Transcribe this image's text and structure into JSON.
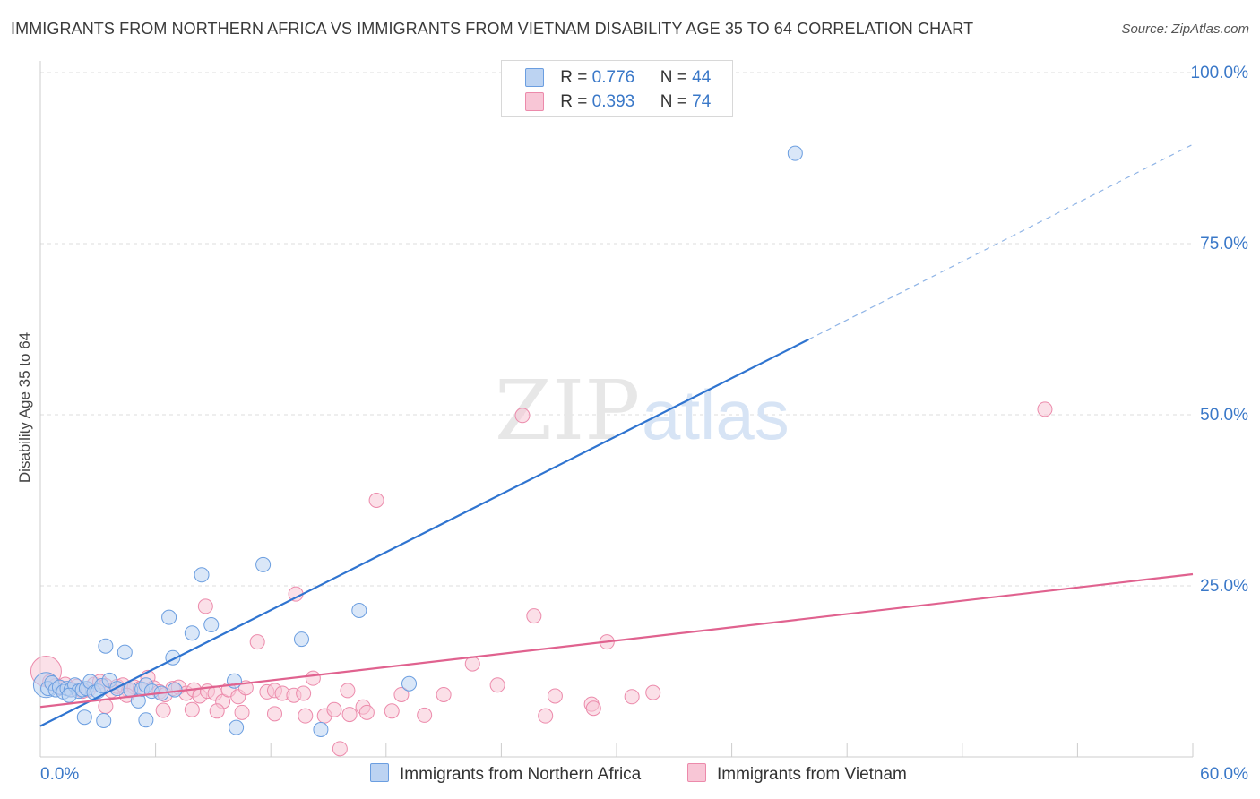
{
  "title": "IMMIGRANTS FROM NORTHERN AFRICA VS IMMIGRANTS FROM VIETNAM DISABILITY AGE 35 TO 64 CORRELATION CHART",
  "source": "Source: ZipAtlas.com",
  "watermark": {
    "zip": "ZIP",
    "atlas": "atlas"
  },
  "legend": {
    "rows": [
      {
        "r_label": "R =",
        "r_value": "0.776",
        "n_label": "N =",
        "n_value": "44"
      },
      {
        "r_label": "R =",
        "r_value": "0.393",
        "n_label": "N =",
        "n_value": "74"
      }
    ]
  },
  "bottom_legend": {
    "series1": "Immigrants from Northern Africa",
    "series2": "Immigrants from Vietnam"
  },
  "colors": {
    "blue_fill": "#bcd3f2",
    "blue_stroke": "#6b9ee0",
    "blue_line": "#2f74d0",
    "pink_fill": "#f8c6d6",
    "pink_stroke": "#ec8aab",
    "pink_line": "#e0628f",
    "axis_label": "#3a78c8",
    "grid": "#dddddd"
  },
  "chart_data": {
    "type": "scatter",
    "title": "IMMIGRANTS FROM NORTHERN AFRICA VS IMMIGRANTS FROM VIETNAM DISABILITY AGE 35 TO 64 CORRELATION CHART",
    "xlabel": "",
    "ylabel": "Disability Age 35 to 64",
    "xlim": [
      0,
      60
    ],
    "ylim": [
      0,
      100
    ],
    "x_tick_labels": [
      "0.0%",
      "60.0%"
    ],
    "y_ticks": [
      25,
      50,
      75,
      100
    ],
    "y_tick_labels": [
      "25.0%",
      "50.0%",
      "75.0%",
      "100.0%"
    ],
    "grid": true,
    "legend_position": "top-center",
    "series": [
      {
        "name": "Immigrants from Northern Africa",
        "r": 0.776,
        "n": 44,
        "trend": {
          "x0": 0,
          "y0": 4.5,
          "x1": 40,
          "y1": 61,
          "dashed_to_x": 60,
          "dashed_to_y": 89.5
        },
        "points": [
          [
            0.3,
            10.5
          ],
          [
            0.4,
            10.0
          ],
          [
            0.6,
            10.8
          ],
          [
            0.8,
            9.8
          ],
          [
            1.0,
            10.2
          ],
          [
            1.2,
            9.5
          ],
          [
            1.4,
            10.0
          ],
          [
            1.6,
            9.8
          ],
          [
            1.8,
            10.5
          ],
          [
            2.0,
            9.6
          ],
          [
            2.2,
            9.8
          ],
          [
            2.4,
            10.0
          ],
          [
            2.6,
            11.0
          ],
          [
            2.8,
            9.4
          ],
          [
            3.0,
            9.6
          ],
          [
            3.2,
            10.4
          ],
          [
            3.4,
            16.2
          ],
          [
            3.6,
            11.2
          ],
          [
            4.0,
            10.0
          ],
          [
            4.4,
            15.3
          ],
          [
            4.7,
            9.8
          ],
          [
            5.1,
            8.2
          ],
          [
            5.3,
            9.9
          ],
          [
            5.5,
            10.5
          ],
          [
            5.8,
            9.6
          ],
          [
            6.3,
            9.3
          ],
          [
            6.7,
            20.4
          ],
          [
            6.9,
            14.5
          ],
          [
            7.0,
            9.8
          ],
          [
            7.9,
            18.1
          ],
          [
            8.4,
            26.6
          ],
          [
            8.9,
            19.3
          ],
          [
            10.1,
            11.1
          ],
          [
            11.6,
            28.1
          ],
          [
            13.6,
            17.2
          ],
          [
            16.6,
            21.4
          ],
          [
            19.2,
            10.7
          ],
          [
            39.3,
            88.2
          ],
          [
            2.3,
            5.8
          ],
          [
            3.3,
            5.3
          ],
          [
            5.5,
            5.4
          ],
          [
            10.2,
            4.3
          ],
          [
            14.6,
            4.0
          ],
          [
            1.5,
            9.0
          ]
        ]
      },
      {
        "name": "Immigrants from Vietnam",
        "r": 0.393,
        "n": 74,
        "trend": {
          "x0": 0,
          "y0": 7.3,
          "x1": 60,
          "y1": 26.7
        },
        "points": [
          [
            0.3,
            12.5
          ],
          [
            0.5,
            11.0
          ],
          [
            0.8,
            10.4
          ],
          [
            1.0,
            10.1
          ],
          [
            1.3,
            10.6
          ],
          [
            1.6,
            9.9
          ],
          [
            1.9,
            10.3
          ],
          [
            2.2,
            9.6
          ],
          [
            2.5,
            9.8
          ],
          [
            2.8,
            10.6
          ],
          [
            3.1,
            11.0
          ],
          [
            3.4,
            10.4
          ],
          [
            3.7,
            9.7
          ],
          [
            4.0,
            10.3
          ],
          [
            4.3,
            10.5
          ],
          [
            4.6,
            9.7
          ],
          [
            4.9,
            10.2
          ],
          [
            5.2,
            10.0
          ],
          [
            5.6,
            11.6
          ],
          [
            5.9,
            10.1
          ],
          [
            6.2,
            9.5
          ],
          [
            6.5,
            9.1
          ],
          [
            6.9,
            10.0
          ],
          [
            7.2,
            10.2
          ],
          [
            7.6,
            9.3
          ],
          [
            8.0,
            9.8
          ],
          [
            8.3,
            8.9
          ],
          [
            8.7,
            9.6
          ],
          [
            9.1,
            9.3
          ],
          [
            9.5,
            8.1
          ],
          [
            9.8,
            9.8
          ],
          [
            10.3,
            8.8
          ],
          [
            10.7,
            10.1
          ],
          [
            11.3,
            16.8
          ],
          [
            11.8,
            9.5
          ],
          [
            12.2,
            9.7
          ],
          [
            12.6,
            9.3
          ],
          [
            13.2,
            9.0
          ],
          [
            13.7,
            9.3
          ],
          [
            14.2,
            11.5
          ],
          [
            14.8,
            6.0
          ],
          [
            15.3,
            6.9
          ],
          [
            16.0,
            9.7
          ],
          [
            16.8,
            7.3
          ],
          [
            17.5,
            37.5
          ],
          [
            18.3,
            6.7
          ],
          [
            18.8,
            9.1
          ],
          [
            21.0,
            9.1
          ],
          [
            22.5,
            13.6
          ],
          [
            23.8,
            10.5
          ],
          [
            25.1,
            49.9
          ],
          [
            25.7,
            20.6
          ],
          [
            26.3,
            6.0
          ],
          [
            26.8,
            8.9
          ],
          [
            28.7,
            7.7
          ],
          [
            28.8,
            7.1
          ],
          [
            29.5,
            16.8
          ],
          [
            30.8,
            8.8
          ],
          [
            31.9,
            9.4
          ],
          [
            52.3,
            50.8
          ],
          [
            13.3,
            23.8
          ],
          [
            8.6,
            22.0
          ],
          [
            7.9,
            6.9
          ],
          [
            6.4,
            6.8
          ],
          [
            3.4,
            7.4
          ],
          [
            9.2,
            6.7
          ],
          [
            10.5,
            6.5
          ],
          [
            12.2,
            6.3
          ],
          [
            13.8,
            6.0
          ],
          [
            16.1,
            6.2
          ],
          [
            17.0,
            6.5
          ],
          [
            20.0,
            6.1
          ],
          [
            15.6,
            1.2
          ],
          [
            4.5,
            9.0
          ]
        ]
      }
    ]
  }
}
